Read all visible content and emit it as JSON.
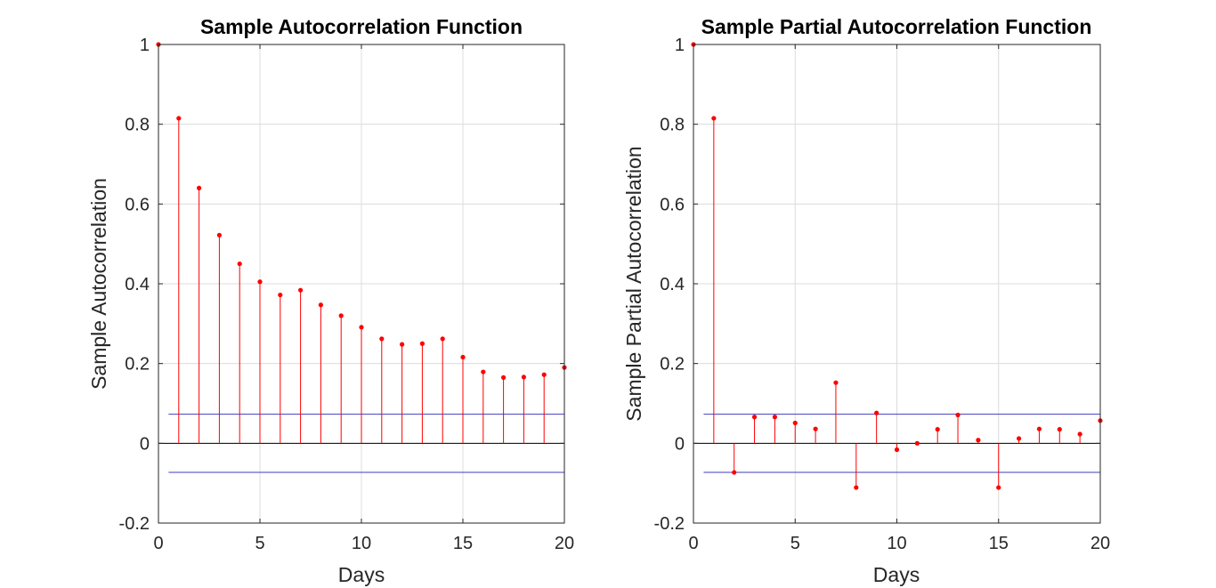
{
  "colors": {
    "stem": "#ff0000",
    "bound": "#3d3dbd",
    "axis": "#262626",
    "grid": "#dcdcdc",
    "zero": "#000000"
  },
  "chart_data": [
    {
      "type": "stem",
      "title": "Sample Autocorrelation Function",
      "xlabel": "Days",
      "ylabel": "Sample Autocorrelation",
      "xlim": [
        0,
        20
      ],
      "ylim": [
        -0.2,
        1
      ],
      "grid": true,
      "xticks": [
        0,
        5,
        10,
        15,
        20
      ],
      "yticks": [
        -0.2,
        0,
        0.2,
        0.4,
        0.6,
        0.8,
        1
      ],
      "xtick_labels": [
        "0",
        "5",
        "10",
        "15",
        "20"
      ],
      "ytick_labels": [
        "-0.2",
        "0",
        "0.2",
        "0.4",
        "0.6",
        "0.8",
        "1"
      ],
      "x": [
        0,
        1,
        2,
        3,
        4,
        5,
        6,
        7,
        8,
        9,
        10,
        11,
        12,
        13,
        14,
        15,
        16,
        17,
        18,
        19,
        20
      ],
      "values": [
        1.0,
        0.815,
        0.64,
        0.522,
        0.45,
        0.405,
        0.372,
        0.384,
        0.347,
        0.32,
        0.291,
        0.262,
        0.248,
        0.25,
        0.262,
        0.216,
        0.179,
        0.165,
        0.166,
        0.172,
        0.19
      ],
      "confidence_bounds": [
        0.073,
        -0.073
      ],
      "bound_x_range": [
        0.5,
        20
      ]
    },
    {
      "type": "stem",
      "title": "Sample Partial Autocorrelation Function",
      "xlabel": "Days",
      "ylabel": "Sample Partial Autocorrelation",
      "xlim": [
        0,
        20
      ],
      "ylim": [
        -0.2,
        1
      ],
      "grid": true,
      "xticks": [
        0,
        5,
        10,
        15,
        20
      ],
      "yticks": [
        -0.2,
        0,
        0.2,
        0.4,
        0.6,
        0.8,
        1
      ],
      "xtick_labels": [
        "0",
        "5",
        "10",
        "15",
        "20"
      ],
      "ytick_labels": [
        "-0.2",
        "0",
        "0.2",
        "0.4",
        "0.6",
        "0.8",
        "1"
      ],
      "x": [
        0,
        1,
        2,
        3,
        4,
        5,
        6,
        7,
        8,
        9,
        10,
        11,
        12,
        13,
        14,
        15,
        16,
        17,
        18,
        19,
        20
      ],
      "values": [
        1.0,
        0.815,
        -0.073,
        0.066,
        0.066,
        0.051,
        0.036,
        0.152,
        -0.111,
        0.076,
        -0.016,
        0.0,
        0.035,
        0.071,
        0.008,
        -0.111,
        0.012,
        0.036,
        0.035,
        0.023,
        0.057
      ],
      "confidence_bounds": [
        0.073,
        -0.073
      ],
      "bound_x_range": [
        0.5,
        20
      ]
    }
  ]
}
